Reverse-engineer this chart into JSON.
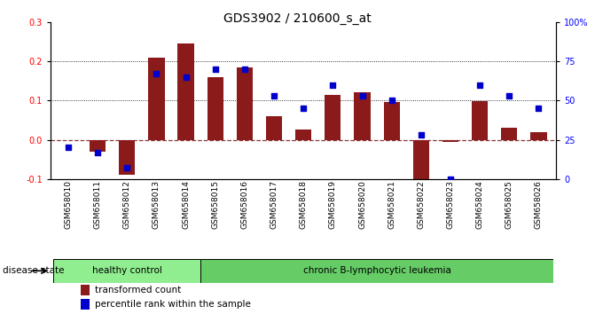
{
  "title": "GDS3902 / 210600_s_at",
  "samples": [
    "GSM658010",
    "GSM658011",
    "GSM658012",
    "GSM658013",
    "GSM658014",
    "GSM658015",
    "GSM658016",
    "GSM658017",
    "GSM658018",
    "GSM658019",
    "GSM658020",
    "GSM658021",
    "GSM658022",
    "GSM658023",
    "GSM658024",
    "GSM658025",
    "GSM658026"
  ],
  "transformed_count": [
    0.0,
    -0.03,
    -0.09,
    0.21,
    0.245,
    0.16,
    0.185,
    0.06,
    0.025,
    0.115,
    0.12,
    0.097,
    -0.115,
    -0.005,
    0.098,
    0.03,
    0.02
  ],
  "percentile_rank": [
    20,
    17,
    7,
    67,
    65,
    70,
    70,
    53,
    45,
    60,
    53,
    50,
    28,
    0,
    60,
    53,
    45
  ],
  "healthy_control_count": 5,
  "group_labels": [
    "healthy control",
    "chronic B-lymphocytic leukemia"
  ],
  "bar_color": "#8B1A1A",
  "dot_color": "#0000CC",
  "zero_line_color": "#8B3A3A",
  "left_ylim": [
    -0.1,
    0.3
  ],
  "right_ylim": [
    0,
    100
  ],
  "left_yticks": [
    -0.1,
    0.0,
    0.1,
    0.2,
    0.3
  ],
  "right_yticks": [
    0,
    25,
    50,
    75,
    100
  ],
  "right_yticklabels": [
    "0",
    "25",
    "50",
    "75",
    "100%"
  ],
  "dotted_lines": [
    0.1,
    0.2
  ],
  "legend_labels": [
    "transformed count",
    "percentile rank within the sample"
  ],
  "disease_state_label": "disease state",
  "background_color": "#ffffff",
  "title_fontsize": 10,
  "tick_fontsize": 7,
  "label_fontsize": 7.5
}
